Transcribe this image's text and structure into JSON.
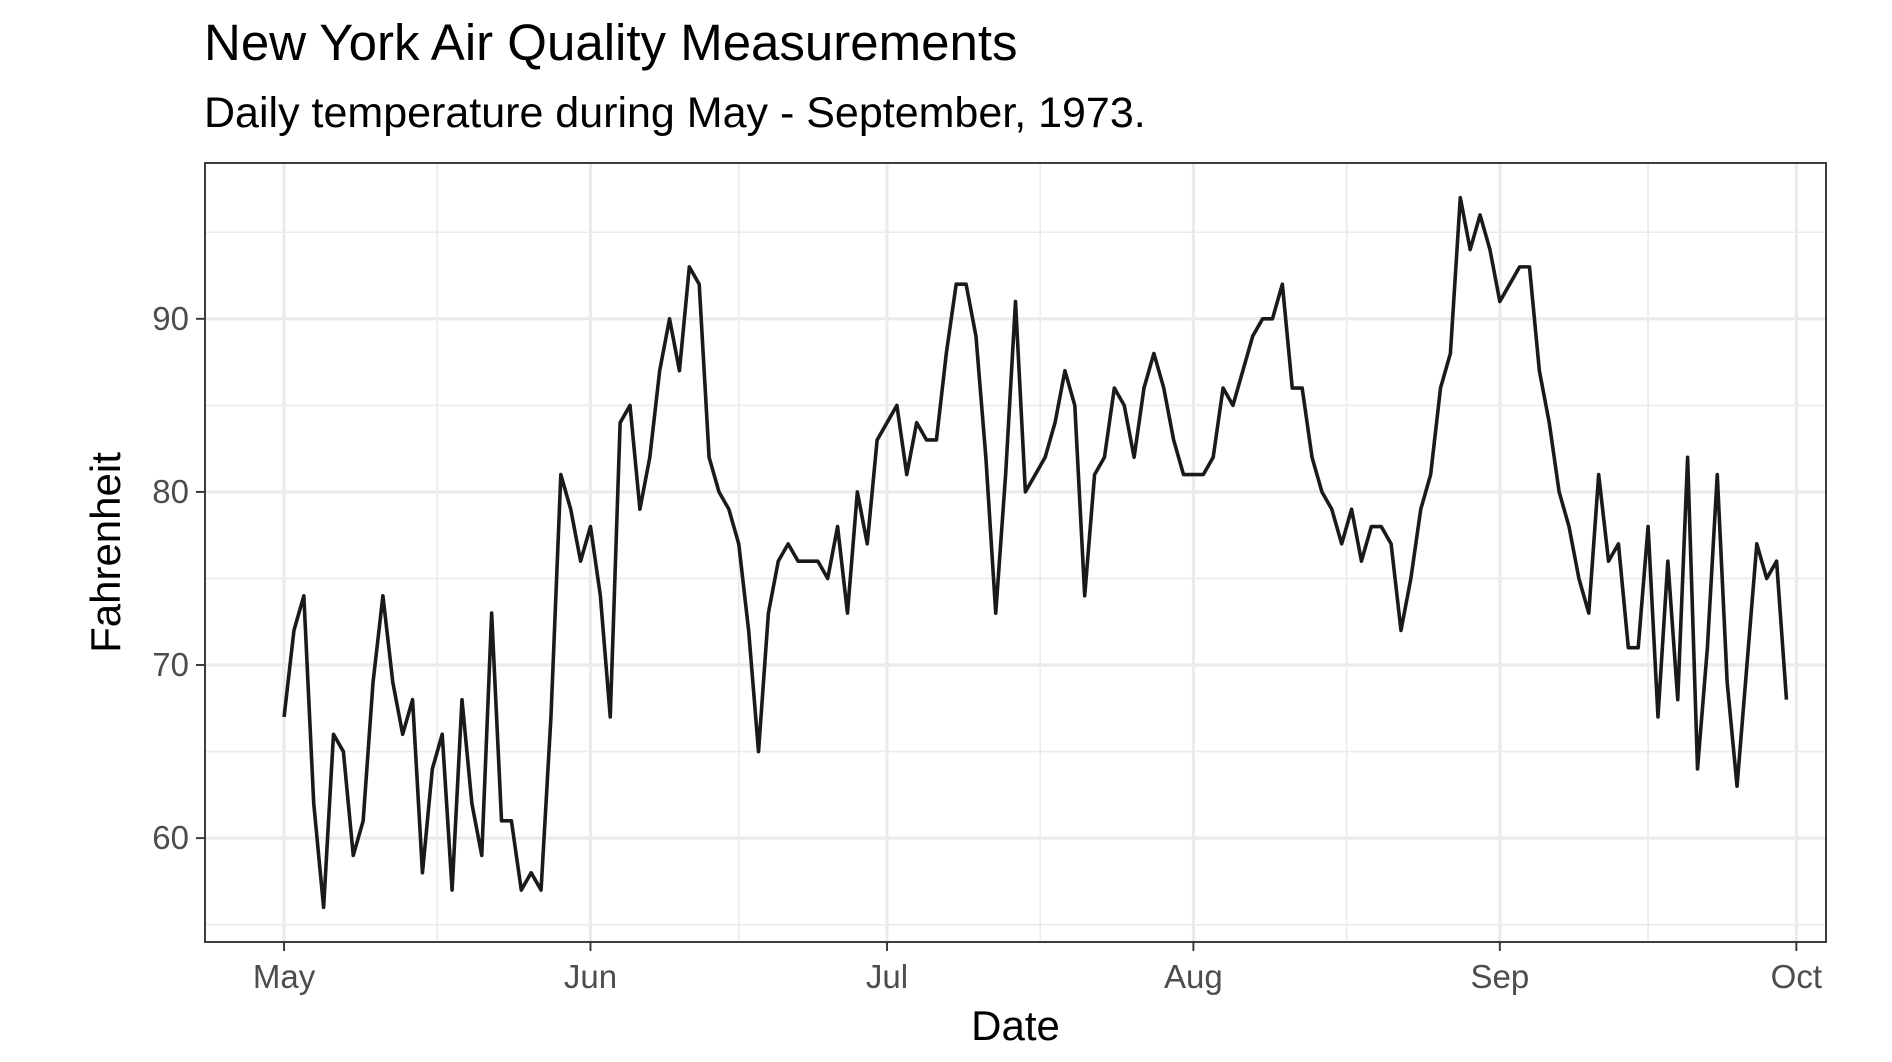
{
  "chart_data": {
    "type": "line",
    "title": "New York Air Quality Measurements",
    "subtitle": "Daily temperature during May - September, 1973.",
    "xlabel": "Date",
    "ylabel": "Fahrenheit",
    "x_start": "1973-05-01",
    "x_end": "1973-09-30",
    "xlim": [
      "1973-04-23",
      "1973-10-04"
    ],
    "ylim": [
      54.0,
      99.0
    ],
    "x_ticks": [
      {
        "date": "1973-05-01",
        "label": "May"
      },
      {
        "date": "1973-06-01",
        "label": "Jun"
      },
      {
        "date": "1973-07-01",
        "label": "Jul"
      },
      {
        "date": "1973-08-01",
        "label": "Aug"
      },
      {
        "date": "1973-09-01",
        "label": "Sep"
      },
      {
        "date": "1973-10-01",
        "label": "Oct"
      }
    ],
    "y_ticks": [
      60,
      70,
      80,
      90
    ],
    "grid": true,
    "line_color": "#1a1a1a",
    "grid_color": "#ebebeb",
    "values": [
      67,
      72,
      74,
      62,
      56,
      66,
      65,
      59,
      61,
      69,
      74,
      69,
      66,
      68,
      58,
      64,
      66,
      57,
      68,
      62,
      59,
      73,
      61,
      61,
      57,
      58,
      57,
      67,
      81,
      79,
      76,
      78,
      74,
      67,
      84,
      85,
      79,
      82,
      87,
      90,
      87,
      93,
      92,
      82,
      80,
      79,
      77,
      72,
      65,
      73,
      76,
      77,
      76,
      76,
      76,
      75,
      78,
      73,
      80,
      77,
      83,
      84,
      85,
      81,
      84,
      83,
      83,
      88,
      92,
      92,
      89,
      82,
      73,
      81,
      91,
      80,
      81,
      82,
      84,
      87,
      85,
      74,
      81,
      82,
      86,
      85,
      82,
      86,
      88,
      86,
      83,
      81,
      81,
      81,
      82,
      86,
      85,
      87,
      89,
      90,
      90,
      92,
      86,
      86,
      82,
      80,
      79,
      77,
      79,
      76,
      78,
      78,
      77,
      72,
      75,
      79,
      81,
      86,
      88,
      97,
      94,
      96,
      94,
      91,
      92,
      93,
      93,
      87,
      84,
      80,
      78,
      75,
      73,
      81,
      76,
      77,
      71,
      71,
      78,
      67,
      76,
      68,
      82,
      64,
      71,
      81,
      69,
      63,
      70,
      77,
      75,
      76,
      68
    ]
  }
}
